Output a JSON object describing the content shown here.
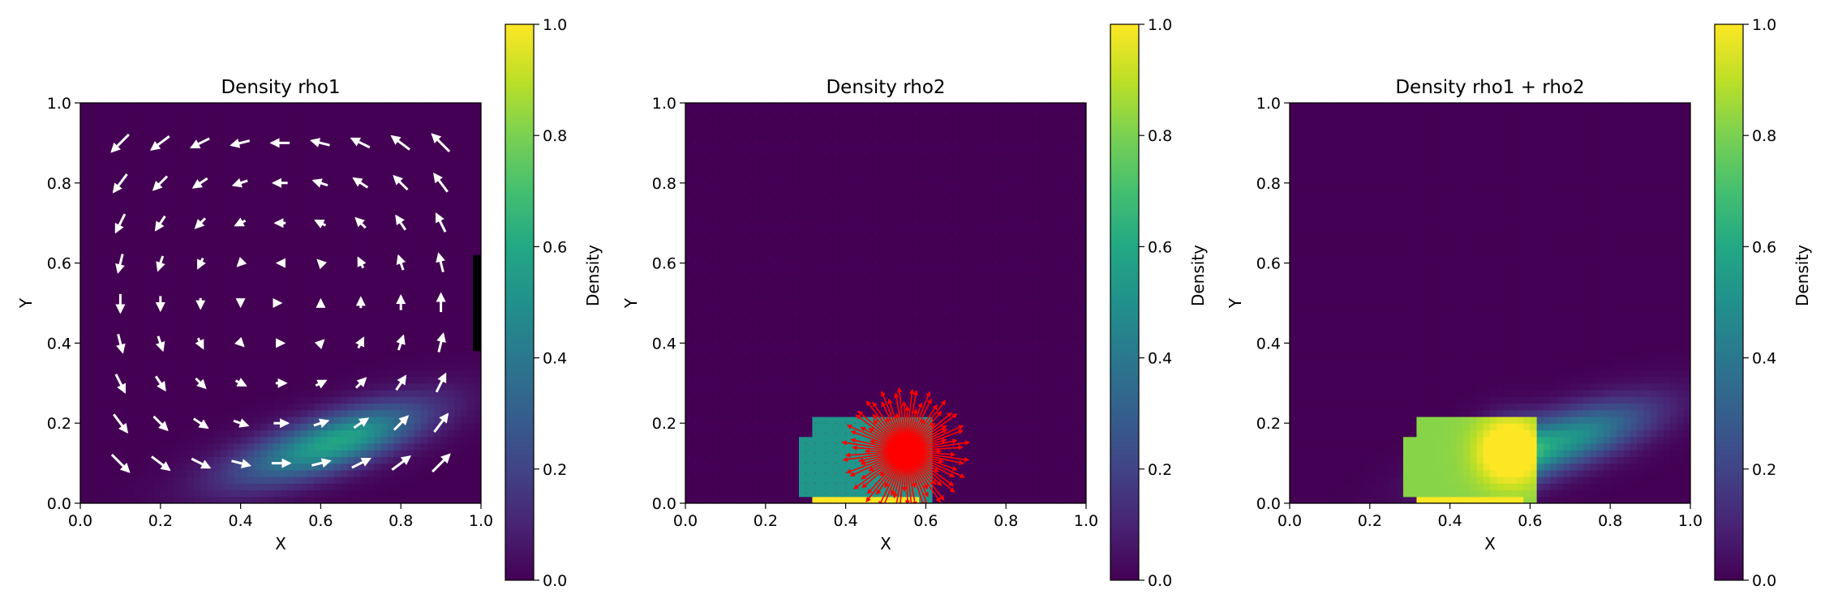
{
  "figure": {
    "colormap": "viridis"
  },
  "chart_data": [
    {
      "type": "heatmap",
      "title": "Density rho1",
      "xlabel": "X",
      "ylabel": "Y",
      "xlim": [
        0.0,
        1.0
      ],
      "ylim": [
        0.0,
        1.0
      ],
      "x_ticks": [
        "0.0",
        "0.2",
        "0.4",
        "0.6",
        "0.8",
        "1.0"
      ],
      "y_ticks": [
        "0.0",
        "0.2",
        "0.4",
        "0.6",
        "0.8",
        "1.0"
      ],
      "colorbar": {
        "label": "Density",
        "range": [
          0.0,
          1.0
        ],
        "ticks": [
          "0.0",
          "0.2",
          "0.4",
          "0.6",
          "0.8",
          "1.0"
        ]
      },
      "density_blobs": [
        {
          "cx": 0.62,
          "cy": 0.15,
          "sx": 0.17,
          "sy": 0.05,
          "peak": 0.52,
          "tilt": 0.3
        },
        {
          "cx": 0.68,
          "cy": 0.16,
          "sx": 0.09,
          "sy": 0.04,
          "peak": 0.08,
          "tilt": 0.3
        }
      ],
      "quiver": {
        "color": "#ffffff",
        "field": "counter-clockwise vortex",
        "center": [
          0.5,
          0.5
        ],
        "grid": [
          0.1,
          0.2,
          0.3,
          0.4,
          0.5,
          0.6,
          0.7,
          0.8,
          0.9
        ]
      },
      "wall": {
        "x": 1.0,
        "y_range": [
          0.38,
          0.62
        ],
        "color": "#000000"
      }
    },
    {
      "type": "heatmap",
      "title": "Density rho2",
      "xlabel": "X",
      "ylabel": "Y",
      "xlim": [
        0.0,
        1.0
      ],
      "ylim": [
        0.0,
        1.0
      ],
      "x_ticks": [
        "0.0",
        "0.2",
        "0.4",
        "0.6",
        "0.8",
        "1.0"
      ],
      "y_ticks": [
        "0.0",
        "0.2",
        "0.4",
        "0.6",
        "0.8",
        "1.0"
      ],
      "colorbar": {
        "label": "Density",
        "range": [
          0.0,
          1.0
        ],
        "ticks": [
          "0.0",
          "0.2",
          "0.4",
          "0.6",
          "0.8",
          "1.0"
        ]
      },
      "density_region": {
        "x_range": [
          0.29,
          0.61
        ],
        "y_range": [
          0.0,
          0.21
        ],
        "value": 0.52,
        "bottom_value": 1.0
      },
      "quiver": {
        "color": "#ff0000",
        "field": "radial burst",
        "center": [
          0.55,
          0.13
        ],
        "radius": 0.16
      }
    },
    {
      "type": "heatmap",
      "title": "Density rho1 + rho2",
      "xlabel": "X",
      "ylabel": "Y",
      "xlim": [
        0.0,
        1.0
      ],
      "ylim": [
        0.0,
        1.0
      ],
      "x_ticks": [
        "0.0",
        "0.2",
        "0.4",
        "0.6",
        "0.8",
        "1.0"
      ],
      "y_ticks": [
        "0.0",
        "0.2",
        "0.4",
        "0.6",
        "0.8",
        "1.0"
      ],
      "colorbar": {
        "label": "Density",
        "range": [
          0.0,
          1.0
        ],
        "ticks": [
          "0.0",
          "0.2",
          "0.4",
          "0.6",
          "0.8",
          "1.0"
        ]
      },
      "density_region": {
        "x_range": [
          0.29,
          0.61
        ],
        "y_range": [
          0.0,
          0.21
        ],
        "value": 0.82,
        "bottom_value": 1.0
      },
      "density_blobs": [
        {
          "cx": 0.55,
          "cy": 0.13,
          "sx": 0.055,
          "sy": 0.055,
          "peak": 0.35,
          "tilt": 0.0
        },
        {
          "cx": 0.66,
          "cy": 0.15,
          "sx": 0.16,
          "sy": 0.05,
          "peak": 0.55,
          "tilt": 0.3
        }
      ]
    }
  ]
}
